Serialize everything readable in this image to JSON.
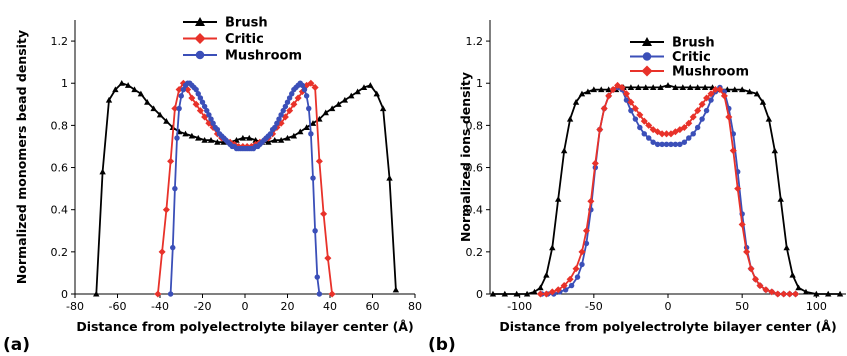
{
  "chart_data": [
    {
      "type": "line",
      "panel_label": "(a)",
      "xlabel": "Distance from polyelectrolyte bilayer center (Å)",
      "ylabel": "Normalized monomers bead density",
      "xlim": [
        -80,
        80
      ],
      "ylim": [
        0,
        1.3
      ],
      "xticks": [
        -80,
        -60,
        -40,
        -20,
        0,
        20,
        40,
        60,
        80
      ],
      "yticks": [
        0,
        0.2,
        0.4,
        0.6,
        0.8,
        1,
        1.2
      ],
      "xtick_labels": [
        "-80",
        "-60",
        "-40",
        "-20",
        "0",
        "20",
        "40",
        "60",
        "80"
      ],
      "ytick_labels": [
        "0",
        "0.2",
        "0.4",
        "0.6",
        "0.8",
        "1",
        "1.2"
      ],
      "grid": false,
      "legend_position": "top-center",
      "series": [
        {
          "name": "Brush",
          "color": "#000000",
          "marker": "triangle",
          "x": [
            -70,
            -67,
            -64,
            -61,
            -58,
            -55,
            -52,
            -49,
            -46,
            -43,
            -40,
            -37,
            -34,
            -31,
            -28,
            -25,
            -22,
            -19,
            -16,
            -13,
            -10,
            -7,
            -4,
            -1,
            2,
            5,
            8,
            11,
            14,
            17,
            20,
            23,
            26,
            29,
            32,
            35,
            38,
            41,
            44,
            47,
            50,
            53,
            56,
            59,
            62,
            65,
            68,
            71
          ],
          "y": [
            0,
            0.58,
            0.92,
            0.97,
            1.0,
            0.99,
            0.97,
            0.95,
            0.91,
            0.88,
            0.85,
            0.82,
            0.79,
            0.77,
            0.76,
            0.75,
            0.74,
            0.73,
            0.73,
            0.72,
            0.72,
            0.72,
            0.73,
            0.74,
            0.74,
            0.73,
            0.72,
            0.72,
            0.73,
            0.73,
            0.74,
            0.75,
            0.77,
            0.79,
            0.81,
            0.83,
            0.86,
            0.88,
            0.9,
            0.92,
            0.94,
            0.96,
            0.98,
            0.99,
            0.95,
            0.88,
            0.55,
            0.02
          ]
        },
        {
          "name": "Critic",
          "color": "#e8322a",
          "marker": "diamond",
          "x": [
            -41,
            -39,
            -37,
            -35,
            -33,
            -31,
            -29,
            -27,
            -25,
            -23,
            -21,
            -19,
            -17,
            -15,
            -13,
            -11,
            -9,
            -7,
            -5,
            -3,
            -1,
            1,
            3,
            5,
            7,
            9,
            11,
            13,
            15,
            17,
            19,
            21,
            23,
            25,
            27,
            29,
            31,
            33,
            35,
            37,
            39,
            41
          ],
          "y": [
            0,
            0.2,
            0.4,
            0.63,
            0.88,
            0.97,
            1.0,
            0.97,
            0.93,
            0.9,
            0.87,
            0.84,
            0.81,
            0.79,
            0.76,
            0.74,
            0.73,
            0.72,
            0.71,
            0.7,
            0.7,
            0.7,
            0.7,
            0.71,
            0.72,
            0.73,
            0.74,
            0.76,
            0.79,
            0.81,
            0.84,
            0.87,
            0.9,
            0.93,
            0.96,
            0.99,
            1.0,
            0.98,
            0.63,
            0.38,
            0.17,
            0
          ]
        },
        {
          "name": "Mushroom",
          "color": "#3b4fb8",
          "marker": "circle",
          "x": [
            -35,
            -34,
            -33,
            -32,
            -31,
            -30,
            -29,
            -28,
            -27,
            -26,
            -25,
            -24,
            -23,
            -22,
            -21,
            -20,
            -19,
            -18,
            -17,
            -16,
            -15,
            -14,
            -13,
            -12,
            -11,
            -10,
            -9,
            -8,
            -7,
            -6,
            -5,
            -4,
            -3,
            -2,
            -1,
            0,
            1,
            2,
            3,
            4,
            5,
            6,
            7,
            8,
            9,
            10,
            11,
            12,
            13,
            14,
            15,
            16,
            17,
            18,
            19,
            20,
            21,
            22,
            23,
            24,
            25,
            26,
            27,
            28,
            29,
            30,
            31,
            32,
            33,
            34,
            35
          ],
          "y": [
            0,
            0.22,
            0.5,
            0.74,
            0.88,
            0.94,
            0.97,
            0.99,
            1.0,
            1.0,
            0.99,
            0.98,
            0.97,
            0.95,
            0.93,
            0.91,
            0.89,
            0.87,
            0.85,
            0.83,
            0.81,
            0.79,
            0.78,
            0.76,
            0.75,
            0.74,
            0.73,
            0.72,
            0.71,
            0.7,
            0.7,
            0.69,
            0.69,
            0.69,
            0.69,
            0.69,
            0.69,
            0.69,
            0.69,
            0.69,
            0.7,
            0.7,
            0.71,
            0.72,
            0.73,
            0.74,
            0.75,
            0.76,
            0.78,
            0.79,
            0.81,
            0.83,
            0.85,
            0.87,
            0.89,
            0.91,
            0.93,
            0.95,
            0.97,
            0.98,
            0.99,
            1.0,
            0.99,
            0.97,
            0.94,
            0.88,
            0.76,
            0.55,
            0.3,
            0.08,
            0
          ]
        }
      ]
    },
    {
      "type": "line",
      "panel_label": "(b)",
      "xlabel": "Distance from polyelectrolyte bilayer center (Å)",
      "ylabel": "Normalized ions density",
      "xlim": [
        -120,
        120
      ],
      "ylim": [
        0,
        1.3
      ],
      "xticks": [
        -100,
        -50,
        0,
        50,
        100
      ],
      "yticks": [
        0,
        0.2,
        0.4,
        0.6,
        0.8,
        1,
        1.2
      ],
      "xtick_labels": [
        "-100",
        "-50",
        "0",
        "50",
        "100"
      ],
      "ytick_labels": [
        "0",
        "0.2",
        "0.4",
        "0.6",
        "0.8",
        "1",
        "1.2"
      ],
      "grid": false,
      "legend_position": "top-center",
      "series": [
        {
          "name": "Brush",
          "color": "#000000",
          "marker": "triangle",
          "x": [
            -118,
            -110,
            -102,
            -95,
            -90,
            -86,
            -82,
            -78,
            -74,
            -70,
            -66,
            -62,
            -58,
            -54,
            -50,
            -45,
            -40,
            -35,
            -30,
            -25,
            -20,
            -15,
            -10,
            -5,
            0,
            5,
            10,
            15,
            20,
            25,
            30,
            35,
            40,
            45,
            50,
            55,
            60,
            64,
            68,
            72,
            76,
            80,
            84,
            88,
            93,
            100,
            108,
            116
          ],
          "y": [
            0,
            0,
            0,
            0,
            0.01,
            0.03,
            0.09,
            0.22,
            0.45,
            0.68,
            0.83,
            0.91,
            0.95,
            0.96,
            0.97,
            0.97,
            0.97,
            0.97,
            0.98,
            0.98,
            0.98,
            0.98,
            0.98,
            0.98,
            0.99,
            0.98,
            0.98,
            0.98,
            0.98,
            0.98,
            0.98,
            0.97,
            0.97,
            0.97,
            0.97,
            0.96,
            0.95,
            0.91,
            0.83,
            0.68,
            0.45,
            0.22,
            0.09,
            0.03,
            0.01,
            0,
            0,
            0
          ]
        },
        {
          "name": "Critic",
          "color": "#3b4fb8",
          "marker": "circle",
          "x": [
            -85,
            -81,
            -77,
            -73,
            -69,
            -65,
            -61,
            -58,
            -55,
            -52,
            -49,
            -46,
            -43,
            -40,
            -37,
            -34,
            -31,
            -28,
            -25,
            -22,
            -19,
            -16,
            -13,
            -10,
            -7,
            -4,
            -1,
            2,
            5,
            8,
            11,
            14,
            17,
            20,
            23,
            26,
            29,
            32,
            35,
            38,
            41,
            44,
            47,
            50,
            53,
            56,
            59,
            62,
            66,
            70,
            74,
            78,
            82,
            86
          ],
          "y": [
            0,
            0,
            0,
            0.01,
            0.02,
            0.04,
            0.08,
            0.14,
            0.24,
            0.4,
            0.6,
            0.78,
            0.88,
            0.94,
            0.97,
            0.98,
            0.97,
            0.92,
            0.87,
            0.83,
            0.79,
            0.76,
            0.74,
            0.72,
            0.71,
            0.71,
            0.71,
            0.71,
            0.71,
            0.71,
            0.72,
            0.74,
            0.76,
            0.79,
            0.83,
            0.87,
            0.92,
            0.96,
            0.98,
            0.96,
            0.88,
            0.76,
            0.58,
            0.38,
            0.22,
            0.12,
            0.07,
            0.04,
            0.02,
            0.01,
            0,
            0,
            0,
            0
          ]
        },
        {
          "name": "Mushroom",
          "color": "#e8322a",
          "marker": "diamond",
          "x": [
            -86,
            -82,
            -78,
            -74,
            -70,
            -66,
            -62,
            -58,
            -55,
            -52,
            -49,
            -46,
            -43,
            -40,
            -37,
            -34,
            -31,
            -28,
            -25,
            -22,
            -19,
            -16,
            -13,
            -10,
            -7,
            -4,
            -1,
            2,
            5,
            8,
            11,
            14,
            17,
            20,
            23,
            26,
            29,
            32,
            35,
            38,
            41,
            44,
            47,
            50,
            53,
            56,
            59,
            62,
            66,
            70,
            74,
            78,
            82,
            86
          ],
          "y": [
            0,
            0,
            0.01,
            0.02,
            0.04,
            0.07,
            0.12,
            0.2,
            0.3,
            0.44,
            0.62,
            0.78,
            0.88,
            0.94,
            0.97,
            0.99,
            0.98,
            0.95,
            0.91,
            0.88,
            0.85,
            0.82,
            0.8,
            0.78,
            0.77,
            0.76,
            0.76,
            0.76,
            0.77,
            0.78,
            0.79,
            0.81,
            0.84,
            0.87,
            0.9,
            0.93,
            0.95,
            0.97,
            0.97,
            0.94,
            0.84,
            0.68,
            0.5,
            0.33,
            0.2,
            0.12,
            0.07,
            0.04,
            0.02,
            0.01,
            0,
            0,
            0,
            0
          ]
        }
      ]
    }
  ]
}
